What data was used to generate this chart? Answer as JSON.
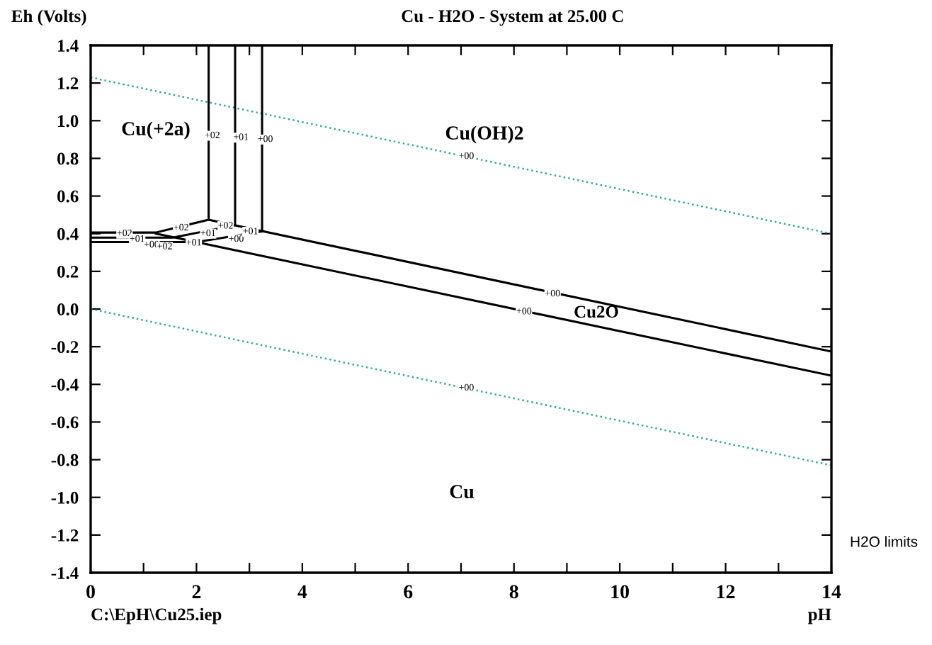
{
  "chart_data": {
    "type": "line",
    "title": "Cu - H2O - System at 25.00 C",
    "xlabel": "pH",
    "ylabel": "Eh (Volts)",
    "xlim": [
      0,
      14
    ],
    "ylim": [
      -1.4,
      1.4
    ],
    "xticks": [
      0,
      {
        "value": 1,
        "label": null
      },
      2,
      {
        "value": 3,
        "label": null
      },
      4,
      {
        "value": 5,
        "label": null
      },
      6,
      {
        "value": 7,
        "label": null
      },
      8,
      {
        "value": 9,
        "label": null
      },
      10,
      {
        "value": 11,
        "label": null
      },
      12,
      {
        "value": 13,
        "label": null
      },
      14
    ],
    "yticks": [
      -1.4,
      -1.2,
      {
        "value": -1,
        "label": "-1.0"
      },
      -0.8,
      -0.6,
      -0.4,
      -0.2,
      {
        "value": 0,
        "label": "0.0"
      },
      0.2,
      0.4,
      0.6,
      0.8,
      {
        "value": 1,
        "label": "1.0"
      },
      1.2,
      1.4
    ],
    "grid": false,
    "marker": "none",
    "series": [
      {
        "color": "#33a6a6",
        "line_style": "dotted",
        "x": [
          0,
          14
        ],
        "values": [
          1.23,
          0.4
        ]
      },
      {
        "color": "#33a6a6",
        "line_style": "dotted",
        "x": [
          0,
          14
        ],
        "values": [
          0.0,
          -0.83
        ]
      },
      {
        "color": "#000000",
        "line_style": "solid",
        "x": [
          0,
          1.23,
          2.23,
          2.23
        ],
        "values": [
          0.406,
          0.406,
          0.474,
          1.4
        ]
      },
      {
        "color": "#000000",
        "line_style": "solid",
        "x": [
          0,
          1.55,
          2.73,
          2.73
        ],
        "values": [
          0.379,
          0.379,
          0.445,
          1.4
        ]
      },
      {
        "color": "#000000",
        "line_style": "solid",
        "x": [
          0,
          2.0,
          3.24,
          3.24
        ],
        "values": [
          0.356,
          0.356,
          0.412,
          1.4
        ]
      },
      {
        "color": "#000000",
        "line_style": "solid",
        "x": [
          1.23,
          14
        ],
        "values": [
          0.401,
          -0.354
        ]
      },
      {
        "color": "#000000",
        "line_style": "solid",
        "x": [
          2.23,
          14
        ],
        "values": [
          0.474,
          -0.226
        ]
      }
    ],
    "annotations": [
      "Cu(+2a)",
      "Cu(OH)2",
      "Cu2O",
      "Cu",
      {
        "text": "+02",
        "x": 2.3,
        "y": 0.92
      },
      {
        "text": "+01",
        "x": 2.84,
        "y": 0.91
      },
      {
        "text": "+00",
        "x": 3.3,
        "y": 0.9
      },
      {
        "text": "+02",
        "x": 0.64,
        "y": 0.4
      },
      {
        "text": "+01",
        "x": 0.88,
        "y": 0.37
      },
      {
        "text": "+00",
        "x": 1.15,
        "y": 0.34
      },
      {
        "text": "+02",
        "x": 1.71,
        "y": 0.43
      },
      {
        "text": "+02",
        "x": 1.4,
        "y": 0.33
      },
      {
        "text": "+01",
        "x": 2.22,
        "y": 0.4
      },
      {
        "text": "+01",
        "x": 1.95,
        "y": 0.35
      },
      {
        "text": "+02",
        "x": 2.55,
        "y": 0.44
      },
      {
        "text": "+00",
        "x": 2.75,
        "y": 0.37
      },
      {
        "text": "+01",
        "x": 3.02,
        "y": 0.41
      },
      {
        "text": "+00",
        "x": 8.73,
        "y": 0.08
      },
      {
        "text": "+00",
        "x": 8.19,
        "y": -0.015
      },
      {
        "text": "+00",
        "x": 7.1,
        "y": 0.81
      },
      {
        "text": "+00",
        "x": 7.1,
        "y": -0.42
      },
      "C:\\EpH\\Cu25.iep",
      "H2O limits"
    ]
  }
}
